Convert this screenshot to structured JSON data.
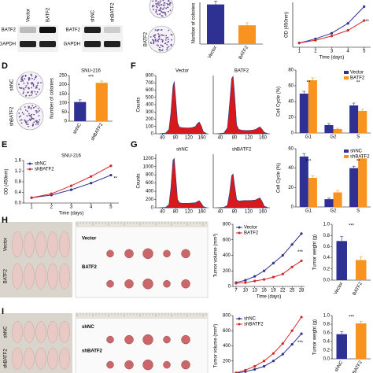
{
  "chart_data": [
    {
      "type": "bar",
      "ylabel": "Number of colonies",
      "categories": [
        "Vector",
        "BATF2"
      ],
      "values": [
        95,
        45
      ],
      "errors": [
        8,
        6
      ],
      "colors": [
        "#2e3192",
        "#f7931e"
      ],
      "ylim": [
        0,
        100
      ]
    },
    {
      "type": "line",
      "ylabel": "OD (450nm)",
      "xlabel": "Time (days)",
      "x": [
        1,
        2,
        3,
        4,
        5
      ],
      "xlim": [
        0.6,
        5.4
      ],
      "xticks": [
        1,
        2,
        3,
        4,
        5
      ],
      "ylim": [
        0,
        1.6
      ],
      "series": [
        {
          "color": "#2e3192",
          "values": [
            0.15,
            0.3,
            0.5,
            0.85,
            1.45
          ]
        },
        {
          "color": "#d62728",
          "values": [
            0.15,
            0.25,
            0.4,
            0.6,
            0.95
          ]
        }
      ],
      "annotations": [
        "**"
      ]
    },
    {
      "type": "bar",
      "title": "SNU-216",
      "ylabel": "Number of colonies",
      "categories": [
        "shNC",
        "shBATF2"
      ],
      "values": [
        105,
        210
      ],
      "errors": [
        12,
        10
      ],
      "colors": [
        "#2e3192",
        "#f7931e"
      ],
      "ylim": [
        0,
        250
      ],
      "yticks": [
        0,
        50,
        100,
        150,
        200,
        250
      ],
      "annotations": [
        "***"
      ]
    },
    {
      "type": "line",
      "title": "SNU-216",
      "ylabel": "OD (450nm)",
      "xlabel": "Time (days)",
      "x": [
        1,
        2,
        3,
        4,
        5
      ],
      "xlim": [
        0.6,
        5.4
      ],
      "xticks": [
        1,
        2,
        3,
        4,
        5
      ],
      "ylim": [
        0,
        1.6
      ],
      "yticks": [
        {
          "value": 0,
          "label": "0.0"
        },
        0.4,
        0.8,
        1.2,
        1.6
      ],
      "series": [
        {
          "name": "shNC",
          "color": "#2e3192",
          "values": [
            0.2,
            0.3,
            0.5,
            0.75,
            1.05
          ]
        },
        {
          "name": "shBATF2",
          "color": "#d62728",
          "values": [
            0.2,
            0.35,
            0.65,
            1.0,
            1.4
          ]
        }
      ],
      "annotations": [
        "**"
      ]
    },
    {
      "type": "area",
      "title": "Vector",
      "ylabel": "Counts",
      "xlim": [
        20,
        180
      ],
      "xticks": [
        40,
        80,
        120,
        160
      ],
      "ylim": [
        0,
        800
      ],
      "yticks": [
        0,
        100,
        200,
        300,
        400,
        500,
        600,
        700,
        800
      ],
      "color": "#d7191c",
      "x": [
        30,
        50,
        60,
        66,
        72,
        76,
        80,
        86,
        92,
        100,
        110,
        120,
        130,
        140,
        146,
        152,
        158,
        164,
        175
      ],
      "values": [
        0,
        10,
        60,
        300,
        650,
        720,
        500,
        150,
        90,
        85,
        80,
        80,
        85,
        100,
        140,
        160,
        110,
        30,
        0
      ]
    },
    {
      "type": "area",
      "title": "BATF2",
      "xlim": [
        20,
        180
      ],
      "xticks": [
        40,
        80,
        120,
        160
      ],
      "ylim": [
        0,
        800
      ],
      "color": "#d7191c",
      "x": [
        30,
        50,
        60,
        66,
        72,
        76,
        80,
        86,
        92,
        100,
        110,
        120,
        130,
        140,
        146,
        152,
        158,
        164,
        175
      ],
      "values": [
        0,
        10,
        80,
        400,
        760,
        790,
        560,
        120,
        60,
        50,
        45,
        45,
        50,
        60,
        80,
        95,
        60,
        20,
        0
      ]
    },
    {
      "type": "bar",
      "ylabel": "Cell Cycle (%)",
      "categories": [
        "G1",
        "G2",
        "S"
      ],
      "ylim": [
        0,
        80
      ],
      "yticks": [
        0,
        20,
        40,
        60,
        80
      ],
      "series": [
        {
          "name": "Vector",
          "color": "#2e3192",
          "values": [
            50,
            10,
            35
          ],
          "errors": [
            3,
            2,
            3
          ]
        },
        {
          "name": "BATF2",
          "color": "#f7931e",
          "values": [
            67,
            5,
            28
          ],
          "errors": [
            3,
            1,
            2
          ]
        }
      ],
      "annotations": [
        "**",
        "**"
      ]
    },
    {
      "type": "area",
      "title": "shNC",
      "ylabel": "Counts",
      "xlim": [
        20,
        180
      ],
      "xticks": [
        40,
        80,
        120,
        160
      ],
      "ylim": [
        0,
        1300
      ],
      "yticks": [
        0,
        200,
        400,
        600,
        800,
        1000,
        1200
      ],
      "color": "#d7191c",
      "x": [
        30,
        50,
        60,
        66,
        72,
        76,
        80,
        86,
        92,
        100,
        110,
        120,
        130,
        140,
        146,
        152,
        158,
        164,
        175
      ],
      "values": [
        0,
        10,
        80,
        500,
        1150,
        1200,
        800,
        200,
        120,
        110,
        110,
        110,
        115,
        120,
        150,
        170,
        110,
        30,
        0
      ]
    },
    {
      "type": "area",
      "title": "shBATF2",
      "xlim": [
        20,
        180
      ],
      "xticks": [
        40,
        80,
        120,
        160
      ],
      "ylim": [
        0,
        1300
      ],
      "color": "#d7191c",
      "x": [
        30,
        50,
        60,
        66,
        72,
        76,
        80,
        86,
        92,
        100,
        110,
        120,
        130,
        140,
        146,
        152,
        158,
        164,
        175
      ],
      "values": [
        0,
        10,
        60,
        350,
        780,
        820,
        560,
        200,
        160,
        170,
        175,
        175,
        180,
        190,
        220,
        240,
        150,
        40,
        0
      ]
    },
    {
      "type": "bar",
      "ylabel": "Cell Cycle (%)",
      "categories": [
        "G1",
        "G2",
        "S"
      ],
      "ylim": [
        0,
        60
      ],
      "yticks": [
        0,
        20,
        40,
        60
      ],
      "series": [
        {
          "name": "shNC",
          "color": "#2e3192",
          "values": [
            52,
            8,
            40
          ],
          "errors": [
            3,
            1,
            2
          ]
        },
        {
          "name": "shBATF2",
          "color": "#f7931e",
          "values": [
            30,
            15,
            50
          ],
          "errors": [
            2,
            2,
            2
          ]
        }
      ],
      "annotations": [
        "***",
        "**"
      ]
    },
    {
      "type": "line",
      "ylabel": "Tumor volume (mm³)",
      "xlabel": "Time (days)",
      "x": [
        7,
        10,
        13,
        16,
        19,
        22,
        25,
        28
      ],
      "xlim": [
        6,
        29
      ],
      "xticks": [
        7,
        10,
        13,
        16,
        19,
        22,
        25,
        28
      ],
      "ylim": [
        0,
        800
      ],
      "yticks": [
        0,
        200,
        400,
        600,
        800
      ],
      "series": [
        {
          "name": "Vector",
          "color": "#2e3192",
          "values": [
            50,
            80,
            130,
            200,
            300,
            400,
            540,
            680
          ]
        },
        {
          "name": "BATF2",
          "color": "#d62728",
          "values": [
            40,
            50,
            70,
            90,
            120,
            160,
            250,
            330
          ]
        }
      ],
      "annotations": [
        "***"
      ]
    },
    {
      "type": "bar",
      "ylabel": "Tumor weight (g)",
      "categories": [
        "Vector",
        "BATF2"
      ],
      "values": [
        0.7,
        0.36
      ],
      "errors": [
        0.08,
        0.06
      ],
      "colors": [
        "#2e3192",
        "#f7931e"
      ],
      "ylim": [
        0,
        1.0
      ],
      "yticks": [
        {
          "value": 0,
          "label": "0.0"
        },
        0.2,
        0.4,
        0.6,
        0.8,
        {
          "value": 1,
          "label": "1.0"
        }
      ],
      "annotations": [
        "***"
      ]
    },
    {
      "type": "line",
      "ylabel": "Tumor volume (mm³)",
      "x": [
        7,
        10,
        13,
        16,
        19,
        22,
        25,
        28
      ],
      "xlim": [
        6,
        29
      ],
      "ylim": [
        0,
        800
      ],
      "yticks": [
        0,
        200,
        400,
        600,
        800
      ],
      "series": [
        {
          "name": "shNC",
          "color": "#2e3192",
          "values": [
            40,
            60,
            90,
            130,
            200,
            290,
            420,
            560
          ]
        },
        {
          "name": "shBATF2",
          "color": "#d62728",
          "values": [
            45,
            80,
            130,
            200,
            300,
            430,
            600,
            780
          ]
        }
      ],
      "annotations": [
        "***"
      ]
    },
    {
      "type": "bar",
      "ylabel": "Tumor weight (g)",
      "categories": [
        "shNC",
        "shBATF2"
      ],
      "values": [
        0.57,
        0.82
      ],
      "errors": [
        0.06,
        0.05
      ],
      "colors": [
        "#2e3192",
        "#f7931e"
      ],
      "ylim": [
        0,
        1.0
      ],
      "yticks": [
        {
          "value": 0,
          "label": "0.0"
        },
        0.2,
        0.4,
        0.6,
        0.8,
        {
          "value": 1,
          "label": "1.0"
        }
      ],
      "annotations": [
        "***"
      ]
    }
  ],
  "figure": {
    "panel_labels": [
      "D",
      "E",
      "F",
      "G",
      "H",
      "I"
    ],
    "blot_left": {
      "lanes": [
        "Vector",
        "BATF2"
      ],
      "rows": [
        "BATF2",
        "GAPDH"
      ]
    },
    "blot_right": {
      "lanes": [
        "shNC",
        "shBATF2"
      ],
      "rows": [
        "BATF2",
        "GAPDH"
      ]
    },
    "colony_top": {
      "labels": [
        "BATF2"
      ]
    },
    "colony_d": {
      "labels": [
        "shNC",
        "shBATF2"
      ]
    },
    "photos_h": {
      "mice": [
        "Vector",
        "BATF2"
      ],
      "tumors": [
        "Vector",
        "BATF2"
      ]
    },
    "photos_i": {
      "mice": [
        "shNC",
        "shBATF2"
      ],
      "tumors": [
        "shNC",
        "shBATF2"
      ]
    }
  }
}
